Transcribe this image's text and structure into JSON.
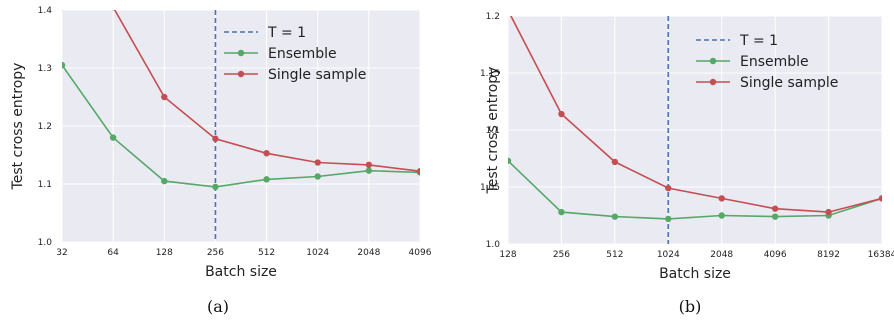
{
  "chart_data": [
    {
      "type": "line",
      "caption": "(a)",
      "xlabel": "Batch size",
      "ylabel": "Test cross entropy",
      "x_scale": "log2",
      "x": [
        32,
        64,
        128,
        256,
        512,
        1024,
        2048,
        4096
      ],
      "x_tick_labels": [
        "32",
        "64",
        "128",
        "256",
        "512",
        "1024",
        "2048",
        "4096"
      ],
      "xlim": [
        32,
        4096
      ],
      "ylim": [
        1.0,
        1.4
      ],
      "y_ticks": [
        1.0,
        1.1,
        1.2,
        1.3,
        1.4
      ],
      "y_tick_labels": [
        "1.0",
        "1.1",
        "1.2",
        "1.3",
        "1.4"
      ],
      "vline": {
        "x": 256,
        "label": "T = 1",
        "color": "#4c72b0"
      },
      "series": [
        {
          "name": "Ensemble",
          "color": "#55a868",
          "values": [
            1.305,
            1.18,
            1.105,
            1.095,
            1.108,
            1.113,
            1.123,
            1.12
          ]
        },
        {
          "name": "Single sample",
          "color": "#c44e52",
          "values": [
            1.405,
            1.405,
            1.25,
            1.178,
            1.153,
            1.137,
            1.133,
            1.122
          ]
        }
      ],
      "grid": true,
      "legend_position": "top-right"
    },
    {
      "type": "line",
      "caption": "(b)",
      "xlabel": "Batch size",
      "ylabel": "Test cross entropy",
      "x_scale": "log2",
      "x": [
        128,
        256,
        512,
        1024,
        2048,
        4096,
        8192,
        16384
      ],
      "x_tick_labels": [
        "128",
        "256",
        "512",
        "1024",
        "2048",
        "4096",
        "8192",
        "16384"
      ],
      "xlim": [
        128,
        16384
      ],
      "ylim": [
        1.0,
        1.2
      ],
      "y_ticks": [
        1.0,
        1.05,
        1.1,
        1.15,
        1.2
      ],
      "y_tick_labels": [
        "1.0",
        "1.05",
        "1.1",
        "1.15",
        "1.2"
      ],
      "vline": {
        "x": 1024,
        "label": "T = 1",
        "color": "#4c72b0"
      },
      "series": [
        {
          "name": "Ensemble",
          "color": "#55a868",
          "values": [
            1.073,
            1.028,
            1.024,
            1.022,
            1.025,
            1.024,
            1.025,
            1.04
          ]
        },
        {
          "name": "Single sample",
          "color": "#c44e52",
          "values": [
            1.205,
            1.114,
            1.072,
            1.049,
            1.04,
            1.031,
            1.028,
            1.04
          ]
        }
      ],
      "grid": true,
      "legend_position": "top-right"
    }
  ]
}
